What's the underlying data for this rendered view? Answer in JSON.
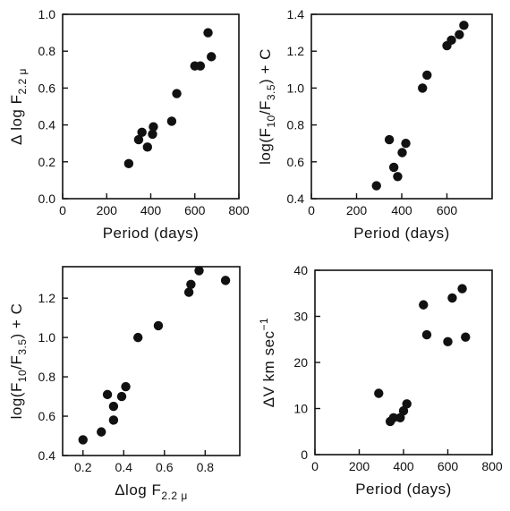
{
  "chart_data": [
    {
      "type": "scatter",
      "xlabel": "Period (days)",
      "ylabel": {
        "base": "Δ  log  F",
        "sub": "2.2 μ",
        "tail": ""
      },
      "xlim": [
        0,
        800
      ],
      "ylim": [
        0.0,
        1.0
      ],
      "xticks": [
        0,
        200,
        400,
        600,
        800
      ],
      "yticks": [
        0.0,
        0.2,
        0.4,
        0.6,
        0.8,
        1.0
      ],
      "xtick_labels": [
        "0",
        "200",
        "400",
        "600",
        "800"
      ],
      "ytick_labels": [
        "0.0",
        "0.2",
        "0.4",
        "0.6",
        "0.8",
        "1.0"
      ],
      "grid": false,
      "points": [
        {
          "x": 300,
          "y": 0.19
        },
        {
          "x": 345,
          "y": 0.32
        },
        {
          "x": 360,
          "y": 0.36
        },
        {
          "x": 385,
          "y": 0.28
        },
        {
          "x": 408,
          "y": 0.35
        },
        {
          "x": 412,
          "y": 0.39
        },
        {
          "x": 495,
          "y": 0.42
        },
        {
          "x": 518,
          "y": 0.57
        },
        {
          "x": 600,
          "y": 0.72
        },
        {
          "x": 625,
          "y": 0.72
        },
        {
          "x": 660,
          "y": 0.9
        },
        {
          "x": 675,
          "y": 0.77
        }
      ]
    },
    {
      "type": "scatter",
      "xlabel": "Period (days)",
      "ylabel": {
        "base": "log(F",
        "sub": "10",
        "mid": "/F",
        "sub2": "3.5",
        "tail": ") + C"
      },
      "xlim": [
        0,
        800
      ],
      "ylim": [
        0.4,
        1.4
      ],
      "xticks": [
        0,
        200,
        400,
        600
      ],
      "yticks": [
        0.4,
        0.6,
        0.8,
        1.0,
        1.2,
        1.4
      ],
      "xtick_labels": [
        "0",
        "200",
        "400",
        "600"
      ],
      "ytick_labels": [
        "0.4",
        "0.6",
        "0.8",
        "1.0",
        "1.2",
        "1.4"
      ],
      "grid": false,
      "points": [
        {
          "x": 288,
          "y": 0.47
        },
        {
          "x": 345,
          "y": 0.72
        },
        {
          "x": 365,
          "y": 0.57
        },
        {
          "x": 382,
          "y": 0.52
        },
        {
          "x": 402,
          "y": 0.65
        },
        {
          "x": 418,
          "y": 0.7
        },
        {
          "x": 492,
          "y": 1.0
        },
        {
          "x": 512,
          "y": 1.07
        },
        {
          "x": 600,
          "y": 1.23
        },
        {
          "x": 620,
          "y": 1.26
        },
        {
          "x": 655,
          "y": 1.29
        },
        {
          "x": 675,
          "y": 1.34
        }
      ]
    },
    {
      "type": "scatter",
      "xlabel": {
        "base": "Δlog  F",
        "sub": "2.2 μ"
      },
      "ylabel": {
        "base": "log(F",
        "sub": "10",
        "mid": "/F",
        "sub2": "3.5",
        "tail": ") + C"
      },
      "xlim": [
        0.1,
        0.97
      ],
      "ylim": [
        0.4,
        1.36
      ],
      "xticks": [
        0.2,
        0.4,
        0.6,
        0.8
      ],
      "yticks": [
        0.4,
        0.6,
        0.8,
        1.0,
        1.2
      ],
      "xtick_labels": [
        "0.2",
        "0.4",
        "0.6",
        "0.8"
      ],
      "ytick_labels": [
        "0.4",
        "0.6",
        "0.8",
        "1.0",
        "1.2"
      ],
      "grid": false,
      "points": [
        {
          "x": 0.2,
          "y": 0.48
        },
        {
          "x": 0.29,
          "y": 0.52
        },
        {
          "x": 0.32,
          "y": 0.71
        },
        {
          "x": 0.35,
          "y": 0.58
        },
        {
          "x": 0.35,
          "y": 0.65
        },
        {
          "x": 0.39,
          "y": 0.7
        },
        {
          "x": 0.41,
          "y": 0.75
        },
        {
          "x": 0.47,
          "y": 1.0
        },
        {
          "x": 0.57,
          "y": 1.06
        },
        {
          "x": 0.72,
          "y": 1.23
        },
        {
          "x": 0.73,
          "y": 1.27
        },
        {
          "x": 0.77,
          "y": 1.34
        },
        {
          "x": 0.9,
          "y": 1.29
        }
      ]
    },
    {
      "type": "scatter",
      "xlabel": "Period (days)",
      "ylabel": {
        "base": "ΔV km sec",
        "sup": "−1"
      },
      "xlim": [
        0,
        800
      ],
      "ylim": [
        0,
        40
      ],
      "xticks": [
        0,
        200,
        400,
        600,
        800
      ],
      "yticks": [
        0,
        10,
        20,
        30,
        40
      ],
      "xtick_labels": [
        "0",
        "200",
        "400",
        "600",
        "800"
      ],
      "ytick_labels": [
        "0",
        "10",
        "20",
        "30",
        "40"
      ],
      "grid": false,
      "points": [
        {
          "x": 288,
          "y": 13.3
        },
        {
          "x": 340,
          "y": 7.2
        },
        {
          "x": 355,
          "y": 8.0
        },
        {
          "x": 385,
          "y": 8.0
        },
        {
          "x": 400,
          "y": 9.5
        },
        {
          "x": 415,
          "y": 11.0
        },
        {
          "x": 490,
          "y": 32.5
        },
        {
          "x": 505,
          "y": 26.0
        },
        {
          "x": 600,
          "y": 24.5
        },
        {
          "x": 620,
          "y": 34.0
        },
        {
          "x": 665,
          "y": 36.0
        },
        {
          "x": 680,
          "y": 25.5
        }
      ]
    }
  ]
}
